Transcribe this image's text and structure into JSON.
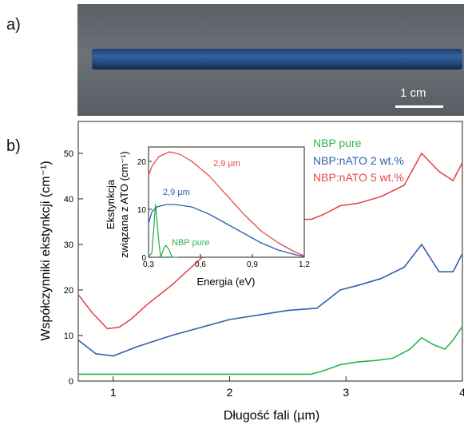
{
  "panel_a_label": "a)",
  "panel_b_label": "b)",
  "scale_bar_label": "1 cm",
  "colors": {
    "green": "#2db34a",
    "blue": "#2f5fae",
    "red": "#e8474a",
    "rod": "#2a4f88"
  },
  "chart_data": [
    {
      "type": "line",
      "xlabel": "Długość fali (µm)",
      "ylabel": "Współczynniki ekstynkcji (cm⁻¹)",
      "xlim": [
        0.7,
        4.0
      ],
      "ylim": [
        0,
        57
      ],
      "x_ticks": [
        "1",
        "2",
        "3",
        "4"
      ],
      "y_ticks": [
        "0",
        "10",
        "20",
        "30",
        "40",
        "50"
      ],
      "legend_position": "top-right",
      "series": [
        {
          "name": "NBP pure",
          "color": "#2db34a",
          "x": [
            0.7,
            1.0,
            1.5,
            2.0,
            2.5,
            2.7,
            2.8,
            2.95,
            3.1,
            3.25,
            3.4,
            3.55,
            3.65,
            3.75,
            3.85,
            3.92,
            4.0
          ],
          "y": [
            1.5,
            1.5,
            1.5,
            1.5,
            1.5,
            1.5,
            2.2,
            3.6,
            4.2,
            4.5,
            5.0,
            7.0,
            9.5,
            8.0,
            7.0,
            9.0,
            12.0
          ]
        },
        {
          "name": "NBP:nATO 2 wt.%",
          "color": "#2f5fae",
          "x": [
            0.7,
            0.85,
            1.0,
            1.2,
            1.5,
            2.0,
            2.5,
            2.75,
            2.8,
            2.95,
            3.1,
            3.3,
            3.5,
            3.65,
            3.8,
            3.92,
            4.0
          ],
          "y": [
            9,
            6,
            5.5,
            7.5,
            10,
            13.5,
            15.5,
            16,
            17,
            20,
            21,
            22.5,
            25,
            30,
            24,
            24,
            28
          ]
        },
        {
          "name": "NBP:nATO 5 wt.%",
          "color": "#e8474a",
          "x": [
            0.7,
            0.82,
            0.95,
            1.05,
            1.15,
            1.3,
            1.5,
            1.8,
            2.1,
            2.3,
            2.5,
            2.7,
            2.8,
            2.95,
            3.1,
            3.3,
            3.5,
            3.65,
            3.8,
            3.92,
            4.0
          ],
          "y": [
            19,
            15,
            11.5,
            11.8,
            13.5,
            17,
            21,
            28,
            33,
            34.5,
            35.5,
            35.5,
            36.5,
            38.5,
            39,
            40.5,
            43,
            50,
            46,
            44,
            48
          ]
        }
      ],
      "gap_x": [
        1.5,
        1.8
      ]
    },
    {
      "type": "line",
      "inset": true,
      "xlabel": "Energia (eV)",
      "ylabel": "Ekstynkcja związana z ATO (cm⁻¹)",
      "ylabel_line1": "Ekstynkcja",
      "ylabel_line2": "związana z ATO (cm⁻¹)",
      "xlim": [
        0.3,
        1.2
      ],
      "ylim": [
        0,
        23
      ],
      "x_ticks": [
        "0,3",
        "0,6",
        "0,9",
        "1,2"
      ],
      "y_ticks": [
        "0",
        "10",
        "20"
      ],
      "annotations": [
        "2,9 µm",
        "2,9 µm",
        "NBP pure"
      ],
      "series": [
        {
          "name": "NBP pure",
          "color": "#2db34a",
          "x": [
            0.3,
            0.32,
            0.34,
            0.36,
            0.37,
            0.38,
            0.39,
            0.4,
            0.42,
            0.43,
            0.44,
            0.45,
            0.47
          ],
          "y": [
            0,
            1,
            11,
            3,
            0,
            1,
            2,
            2.5,
            1.5,
            0.5,
            0,
            0,
            0
          ]
        },
        {
          "name": "blue",
          "color": "#2f5fae",
          "x": [
            0.3,
            0.32,
            0.35,
            0.4,
            0.45,
            0.55,
            0.65,
            0.75,
            0.85,
            0.95,
            1.05,
            1.15,
            1.2
          ],
          "y": [
            7,
            9.5,
            10.5,
            11,
            11,
            10.5,
            9,
            7,
            5,
            3,
            1.5,
            0.5,
            0.2
          ]
        },
        {
          "name": "red",
          "color": "#e8474a",
          "x": [
            0.3,
            0.32,
            0.36,
            0.42,
            0.48,
            0.55,
            0.65,
            0.75,
            0.85,
            0.95,
            1.05,
            1.15,
            1.2
          ],
          "y": [
            17,
            19,
            21,
            22,
            21.5,
            20,
            17,
            13,
            9,
            5.5,
            3,
            1,
            0.3
          ]
        }
      ]
    }
  ]
}
